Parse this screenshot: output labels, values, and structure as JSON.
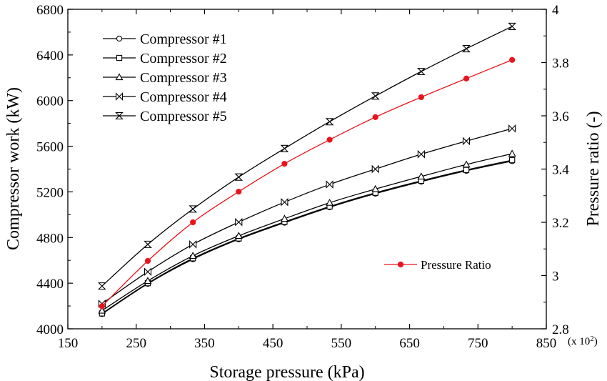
{
  "chart_data": {
    "type": "line",
    "xlabel": "Storage pressure (kPa)",
    "x_multiplier": "(x 10",
    "x_multiplier_exp": "2",
    "x_multiplier_close": ")",
    "ylabel": "Compressor work (kW)",
    "y2label": "Pressure ratio (-)",
    "xlim": [
      150,
      850
    ],
    "ylim": [
      4000,
      6800
    ],
    "y2lim": [
      2.8,
      4.0
    ],
    "xticks": [
      150,
      250,
      350,
      450,
      550,
      650,
      750,
      850
    ],
    "yticks": [
      4000,
      4400,
      4800,
      5200,
      5600,
      6000,
      6400,
      6800
    ],
    "y2ticks": [
      "2.8",
      "3",
      "3.2",
      "3.4",
      "3.6",
      "3.8",
      "4"
    ],
    "x": [
      200,
      267,
      333,
      400,
      467,
      533,
      600,
      667,
      733,
      800
    ],
    "series": [
      {
        "name": "Compressor #1",
        "marker": "circle",
        "axis": "left",
        "color": "#000000",
        "values": [
          4130,
          4395,
          4610,
          4785,
          4930,
          5065,
          5185,
          5290,
          5385,
          5470
        ]
      },
      {
        "name": "Compressor #2",
        "marker": "square",
        "axis": "left",
        "color": "#000000",
        "values": [
          4135,
          4400,
          4618,
          4792,
          4937,
          5072,
          5192,
          5297,
          5392,
          5478
        ]
      },
      {
        "name": "Compressor #3",
        "marker": "triangle",
        "axis": "left",
        "color": "#000000",
        "values": [
          4160,
          4420,
          4640,
          4815,
          4965,
          5105,
          5225,
          5335,
          5440,
          5535
        ]
      },
      {
        "name": "Compressor #4",
        "marker": "bowtie",
        "axis": "left",
        "color": "#000000",
        "values": [
          4220,
          4500,
          4740,
          4935,
          5110,
          5265,
          5400,
          5530,
          5645,
          5755
        ]
      },
      {
        "name": "Compressor #5",
        "marker": "hourglass",
        "axis": "left",
        "color": "#000000",
        "values": [
          4375,
          4740,
          5050,
          5330,
          5580,
          5815,
          6040,
          6255,
          6455,
          6650
        ]
      },
      {
        "name": "Pressure Ratio",
        "marker": "dot",
        "axis": "right",
        "color": "#e8141b",
        "values": [
          2.885,
          3.055,
          3.2,
          3.315,
          3.42,
          3.51,
          3.595,
          3.67,
          3.74,
          3.81
        ]
      }
    ],
    "legend_position": "top-left",
    "ratio_legend_position": "right-middle",
    "grid": false
  }
}
